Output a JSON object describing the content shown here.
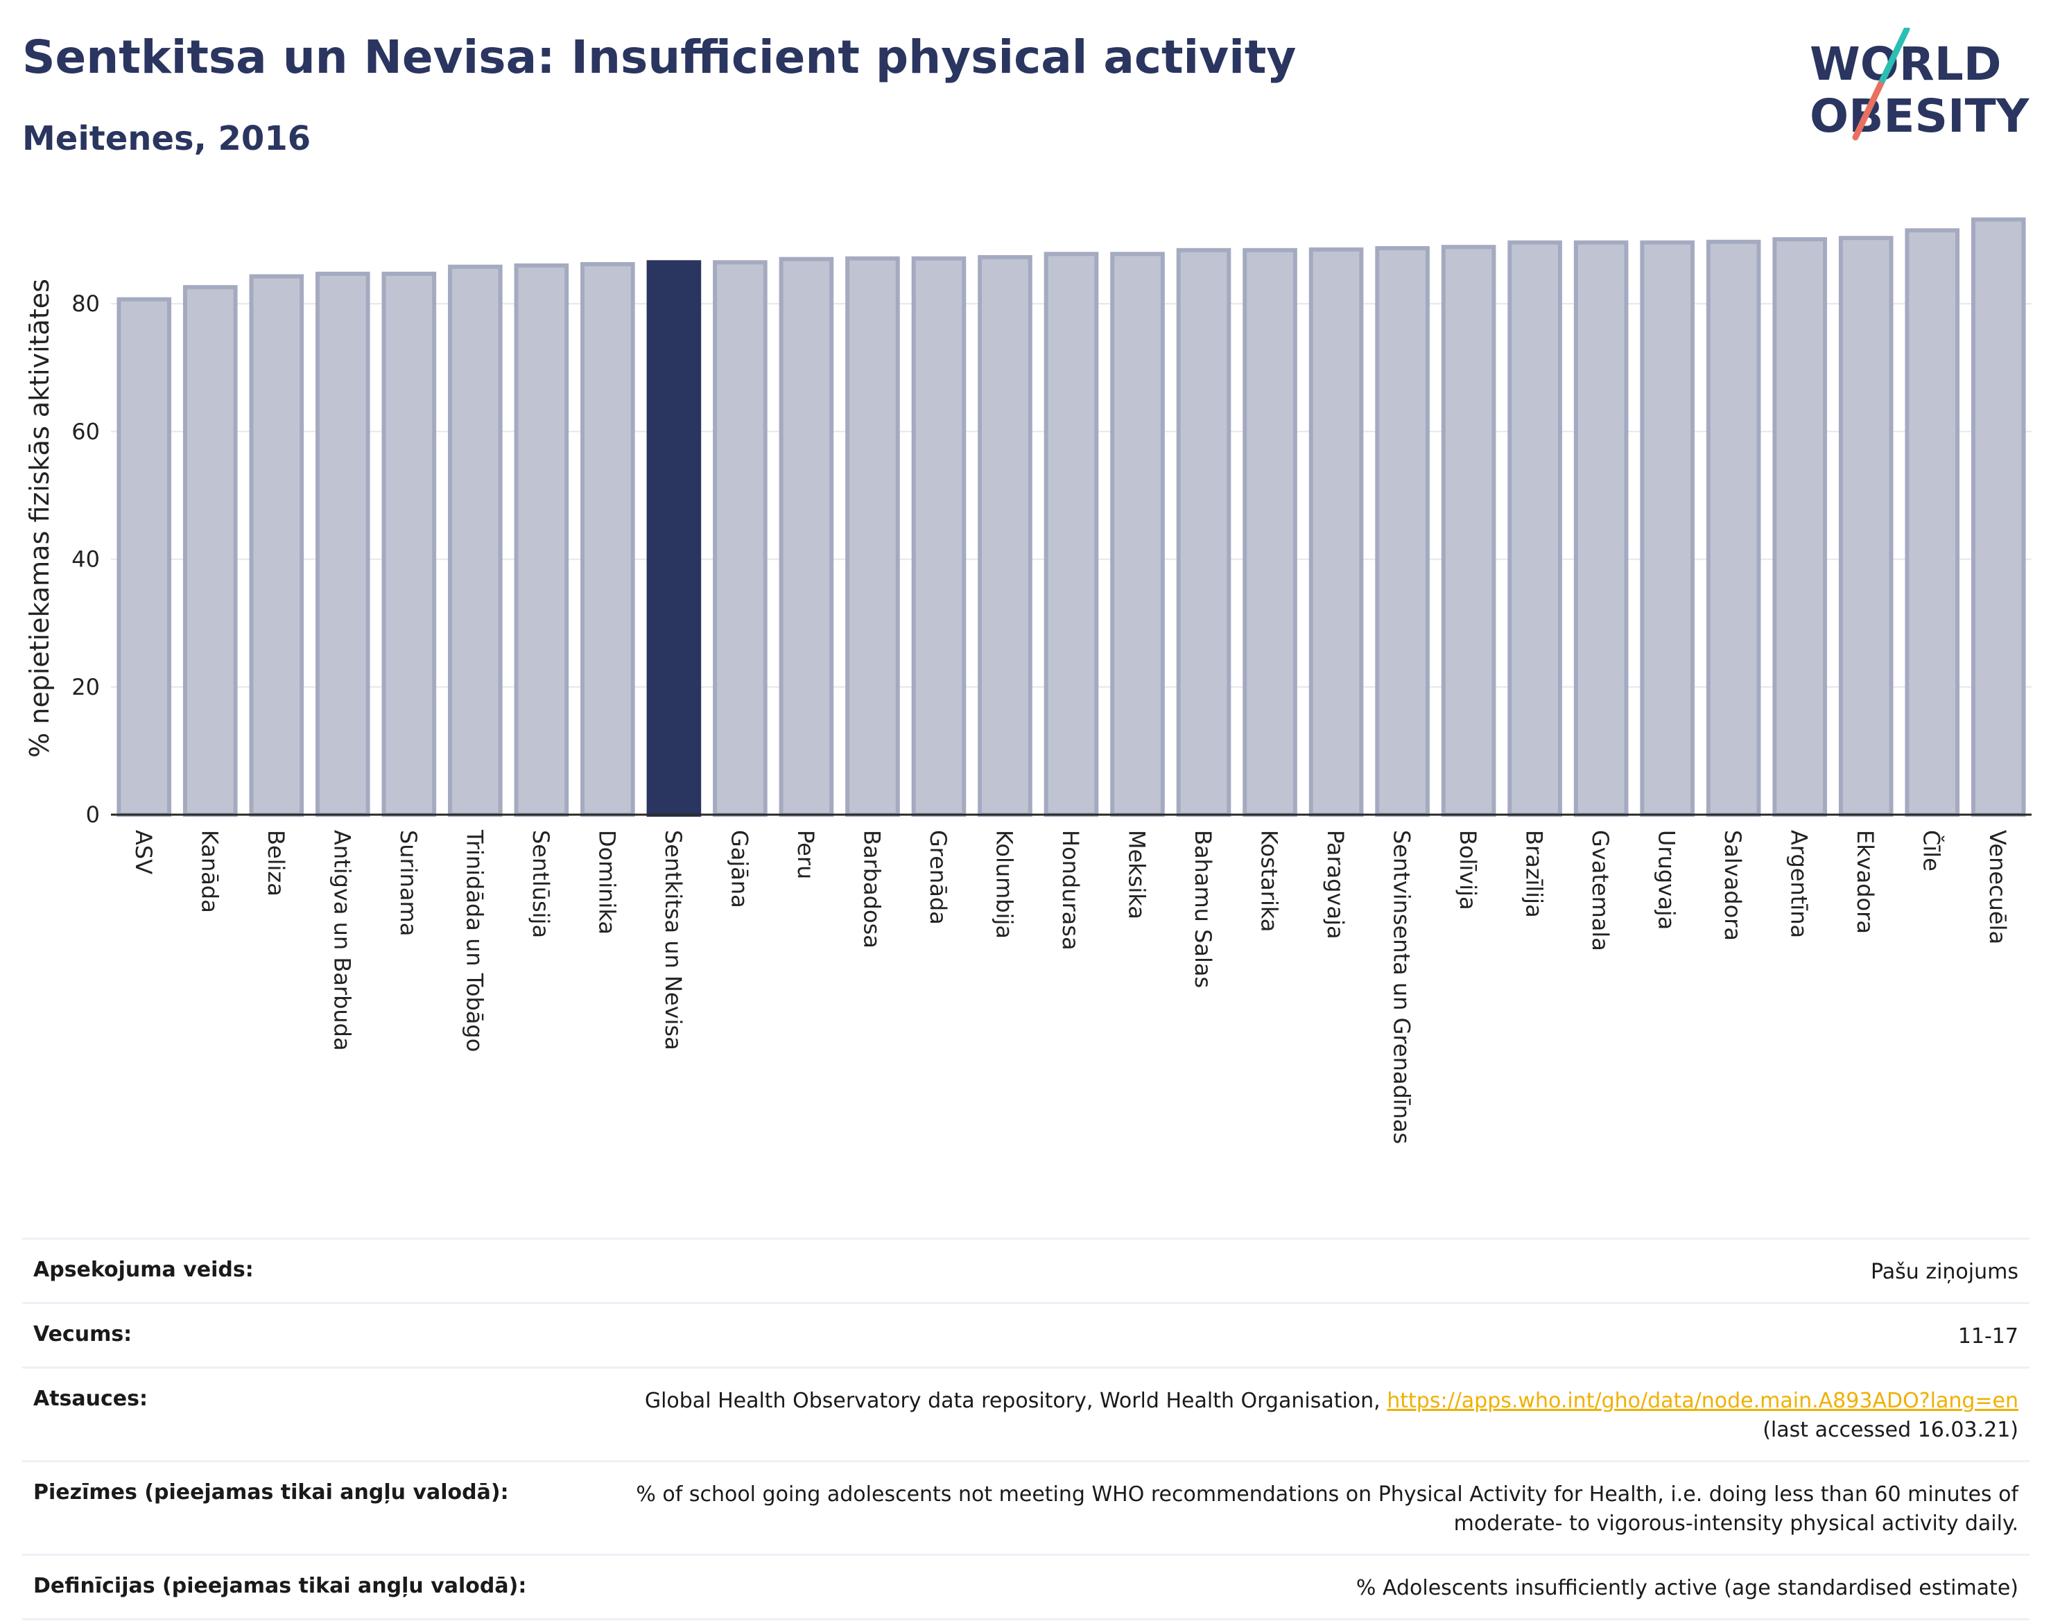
{
  "header": {
    "title": "Sentkitsa un Nevisa: Insufficient physical activity",
    "subtitle": "Meitenes, 2016"
  },
  "logo": {
    "text_line1": "WORLD",
    "text_line2": "OBESITY"
  },
  "colors": {
    "highlight": "#2a3560",
    "bar": "#c0c4d2",
    "bar_border": "#a4aac0",
    "accent_teal": "#2bbfb3",
    "accent_coral": "#e8705f"
  },
  "chart_data": {
    "type": "bar",
    "title": "Sentkitsa un Nevisa: Insufficient physical activity",
    "subtitle": "Meitenes, 2016",
    "ylabel": "% nepietiekamas fiziskās aktivitātes",
    "xlabel": "",
    "ylim": [
      0,
      95
    ],
    "yticks": [
      0,
      20,
      40,
      60,
      80
    ],
    "grid": true,
    "highlight_category": "Sentkitsa un Nevisa",
    "categories": [
      "ASV",
      "Kanāda",
      "Beliza",
      "Antigva un Barbuda",
      "Surinama",
      "Trinidāda un Tobāgo",
      "Sentlūsija",
      "Dominika",
      "Sentkitsa un Nevisa",
      "Gajāna",
      "Peru",
      "Barbadosa",
      "Grenāda",
      "Kolumbija",
      "Hondurasa",
      "Meksika",
      "Bahamu Salas",
      "Kostarika",
      "Paragvaja",
      "Sentvinsenta un Grenadīnas",
      "Bolīvija",
      "Brazīlija",
      "Gvatemala",
      "Urugvaja",
      "Salvadora",
      "Argentīna",
      "Ekvadora",
      "Čīle",
      "Venecuēla"
    ],
    "values": [
      80.7,
      82.6,
      84.3,
      84.7,
      84.7,
      85.8,
      86.0,
      86.2,
      86.5,
      86.5,
      87.0,
      87.1,
      87.1,
      87.3,
      87.8,
      87.8,
      88.4,
      88.4,
      88.5,
      88.7,
      88.9,
      89.6,
      89.6,
      89.6,
      89.7,
      90.1,
      90.3,
      91.5,
      93.2
    ]
  },
  "info": {
    "rows": [
      {
        "label": "Apsekojuma veids:",
        "value": "Pašu ziņojums"
      },
      {
        "label": "Vecums:",
        "value": "11-17"
      },
      {
        "label": "Atsauces:",
        "value": "Global Health Observatory data repository, World Health Organisation,",
        "link": "https://apps.who.int/gho/data/node.main.A893ADO?lang=en",
        "value2": "(last accessed 16.03.21)"
      },
      {
        "label": "Piezīmes (pieejamas tikai angļu valodā):",
        "value": "% of school going adolescents not meeting WHO recommendations on Physical Activity for Health, i.e. doing less than 60 minutes of moderate- to vigorous-intensity physical activity daily."
      },
      {
        "label": "Definīcijas (pieejamas tikai angļu valodā):",
        "value": "% Adolescents insufficiently active (age standardised estimate)"
      }
    ]
  }
}
